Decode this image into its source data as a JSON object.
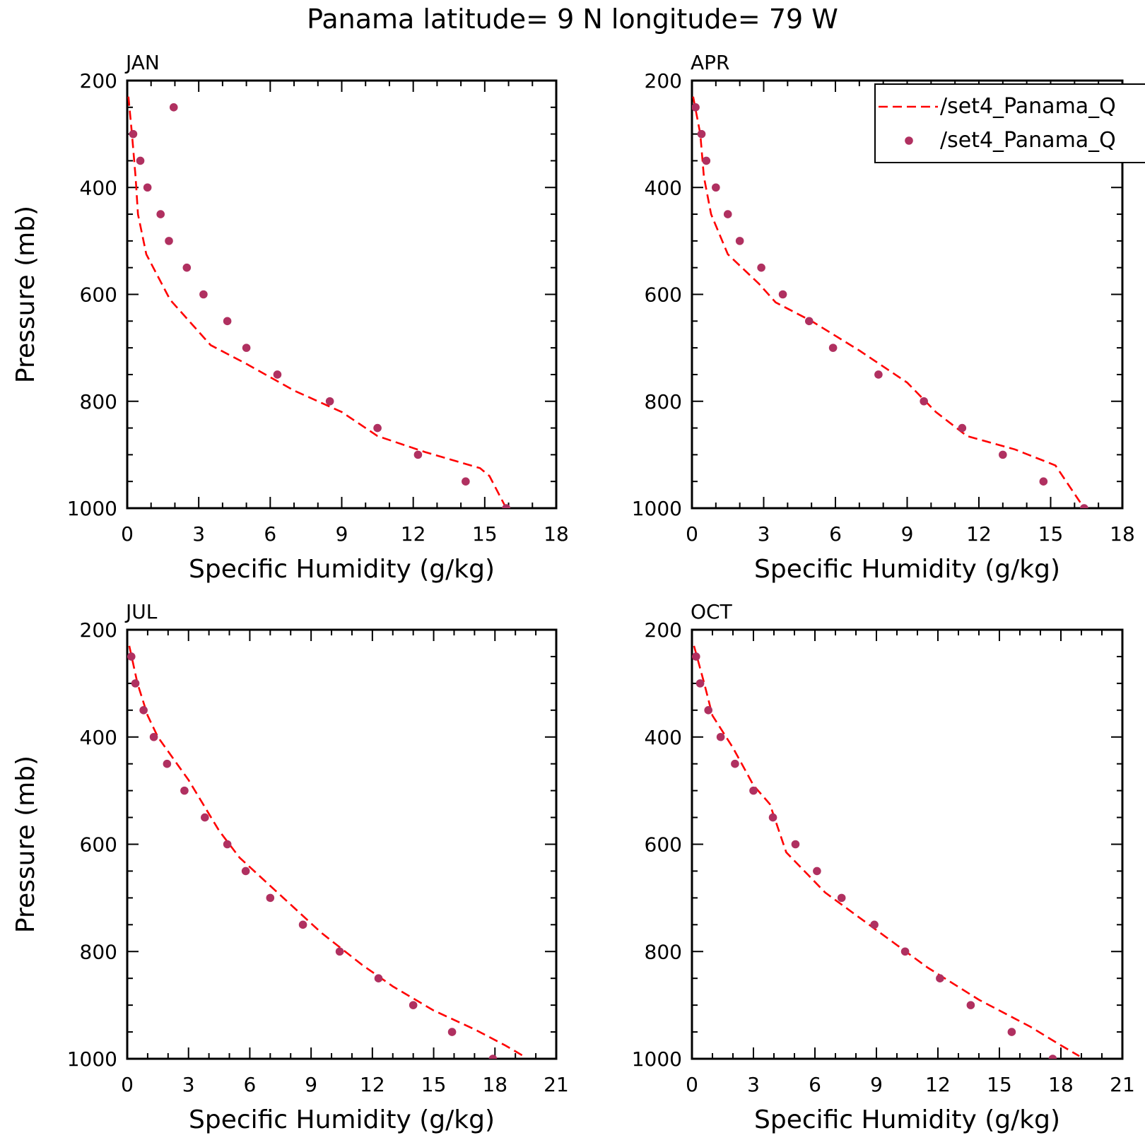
{
  "figure": {
    "title": "Panama  latitude= 9 N longitude= 79 W"
  },
  "legend": {
    "placement": "top-right of APR panel (clipped at figure edge)",
    "entries": [
      {
        "label": "/set4_Panama_Q",
        "style": "dashed-line",
        "color": "#ff0000"
      },
      {
        "label": "/set4_Panama_Q",
        "style": "dot",
        "color": "#b03060"
      }
    ]
  },
  "colors": {
    "model_line": "#ff0000",
    "obs_points": "#b03060",
    "axes": "#000000"
  },
  "chart_data": [
    {
      "type": "line",
      "panel_label": "JAN",
      "xlabel": "Specific Humidity (g/kg)",
      "ylabel": "Pressure (mb)",
      "xlim": [
        0,
        18
      ],
      "ylim": [
        1000,
        200
      ],
      "yaxis_reversed": true,
      "xticks": [
        0,
        3,
        6,
        9,
        12,
        15,
        18
      ],
      "yticks": [
        200,
        400,
        600,
        800,
        1000
      ],
      "grid": false,
      "series": [
        {
          "style": "dashed-line",
          "color": "#ff0000",
          "points": [
            [
              0.05,
              230
            ],
            [
              0.2,
              300
            ],
            [
              0.35,
              380
            ],
            [
              0.45,
              450
            ],
            [
              0.8,
              525
            ],
            [
              1.8,
              610
            ],
            [
              3.5,
              695
            ],
            [
              5,
              730
            ],
            [
              7,
              780
            ],
            [
              9,
              820
            ],
            [
              10.5,
              865
            ],
            [
              12.5,
              895
            ],
            [
              14.8,
              925
            ],
            [
              15.2,
              940
            ],
            [
              15.9,
              1000
            ]
          ]
        },
        {
          "style": "dot",
          "color": "#b03060",
          "points": [
            [
              1.95,
              250
            ],
            [
              0.25,
              300
            ],
            [
              0.55,
              350
            ],
            [
              0.85,
              400
            ],
            [
              1.4,
              450
            ],
            [
              1.75,
              500
            ],
            [
              2.5,
              550
            ],
            [
              3.2,
              600
            ],
            [
              4.2,
              650
            ],
            [
              5,
              700
            ],
            [
              6.3,
              750
            ],
            [
              8.5,
              800
            ],
            [
              10.5,
              850
            ],
            [
              12.2,
              900
            ],
            [
              14.2,
              950
            ],
            [
              15.9,
              1000
            ]
          ]
        }
      ]
    },
    {
      "type": "line",
      "panel_label": "APR",
      "xlabel": "Specific Humidity (g/kg)",
      "ylabel": "",
      "xlim": [
        0,
        18
      ],
      "ylim": [
        1000,
        200
      ],
      "yaxis_reversed": true,
      "xticks": [
        0,
        3,
        6,
        9,
        12,
        15,
        18
      ],
      "yticks": [
        200,
        400,
        600,
        800,
        1000
      ],
      "grid": false,
      "series": [
        {
          "style": "dashed-line",
          "color": "#ff0000",
          "points": [
            [
              0.05,
              230
            ],
            [
              0.35,
              300
            ],
            [
              0.5,
              380
            ],
            [
              0.8,
              450
            ],
            [
              1.5,
              525
            ],
            [
              2.8,
              580
            ],
            [
              3.5,
              615
            ],
            [
              5,
              650
            ],
            [
              7,
              705
            ],
            [
              9,
              765
            ],
            [
              10.2,
              820
            ],
            [
              11.5,
              865
            ],
            [
              13.5,
              890
            ],
            [
              15.2,
              920
            ],
            [
              16.4,
              1000
            ]
          ]
        },
        {
          "style": "dot",
          "color": "#b03060",
          "points": [
            [
              0.15,
              250
            ],
            [
              0.4,
              300
            ],
            [
              0.6,
              350
            ],
            [
              1,
              400
            ],
            [
              1.5,
              450
            ],
            [
              2,
              500
            ],
            [
              2.9,
              550
            ],
            [
              3.8,
              600
            ],
            [
              4.9,
              650
            ],
            [
              5.9,
              700
            ],
            [
              7.8,
              750
            ],
            [
              9.7,
              800
            ],
            [
              11.3,
              850
            ],
            [
              13,
              900
            ],
            [
              14.7,
              950
            ],
            [
              16.4,
              1000
            ]
          ]
        }
      ]
    },
    {
      "type": "line",
      "panel_label": "JUL",
      "xlabel": "Specific Humidity (g/kg)",
      "ylabel": "Pressure (mb)",
      "xlim": [
        0,
        21
      ],
      "ylim": [
        1000,
        200
      ],
      "yaxis_reversed": true,
      "xticks": [
        0,
        3,
        6,
        9,
        12,
        15,
        18,
        21
      ],
      "yticks": [
        200,
        400,
        600,
        800,
        1000
      ],
      "grid": false,
      "series": [
        {
          "style": "dashed-line",
          "color": "#ff0000",
          "points": [
            [
              0.1,
              230
            ],
            [
              0.5,
              300
            ],
            [
              1,
              360
            ],
            [
              1.5,
              400
            ],
            [
              3,
              480
            ],
            [
              4.5,
              575
            ],
            [
              5.5,
              625
            ],
            [
              7.5,
              695
            ],
            [
              9.5,
              765
            ],
            [
              11.5,
              825
            ],
            [
              13,
              865
            ],
            [
              15,
              910
            ],
            [
              17,
              945
            ],
            [
              18.5,
              975
            ],
            [
              19.4,
              995
            ]
          ]
        },
        {
          "style": "dot",
          "color": "#b03060",
          "points": [
            [
              0.2,
              250
            ],
            [
              0.4,
              300
            ],
            [
              0.8,
              350
            ],
            [
              1.3,
              400
            ],
            [
              1.95,
              450
            ],
            [
              2.8,
              500
            ],
            [
              3.8,
              550
            ],
            [
              4.9,
              600
            ],
            [
              5.8,
              650
            ],
            [
              7,
              700
            ],
            [
              8.6,
              750
            ],
            [
              10.4,
              800
            ],
            [
              12.3,
              850
            ],
            [
              14,
              900
            ],
            [
              15.9,
              950
            ],
            [
              17.9,
              1000
            ]
          ]
        }
      ]
    },
    {
      "type": "line",
      "panel_label": "OCT",
      "xlabel": "Specific Humidity (g/kg)",
      "ylabel": "",
      "xlim": [
        0,
        21
      ],
      "ylim": [
        1000,
        200
      ],
      "yaxis_reversed": true,
      "xticks": [
        0,
        3,
        6,
        9,
        12,
        15,
        18,
        21
      ],
      "yticks": [
        200,
        400,
        600,
        800,
        1000
      ],
      "grid": false,
      "series": [
        {
          "style": "dashed-line",
          "color": "#ff0000",
          "points": [
            [
              0.1,
              230
            ],
            [
              0.6,
              300
            ],
            [
              1,
              360
            ],
            [
              2,
              420
            ],
            [
              3,
              490
            ],
            [
              3.8,
              525
            ],
            [
              4.6,
              615
            ],
            [
              6.5,
              690
            ],
            [
              9,
              760
            ],
            [
              11.5,
              830
            ],
            [
              14,
              890
            ],
            [
              16.5,
              940
            ],
            [
              18,
              975
            ],
            [
              18.9,
              995
            ]
          ]
        },
        {
          "style": "dot",
          "color": "#b03060",
          "points": [
            [
              0.2,
              250
            ],
            [
              0.4,
              300
            ],
            [
              0.8,
              350
            ],
            [
              1.4,
              400
            ],
            [
              2.1,
              450
            ],
            [
              3,
              500
            ],
            [
              3.95,
              550
            ],
            [
              5.05,
              600
            ],
            [
              6.1,
              650
            ],
            [
              7.3,
              700
            ],
            [
              8.9,
              750
            ],
            [
              10.4,
              800
            ],
            [
              12.1,
              850
            ],
            [
              13.6,
              900
            ],
            [
              15.6,
              950
            ],
            [
              17.6,
              1000
            ]
          ]
        }
      ]
    }
  ]
}
